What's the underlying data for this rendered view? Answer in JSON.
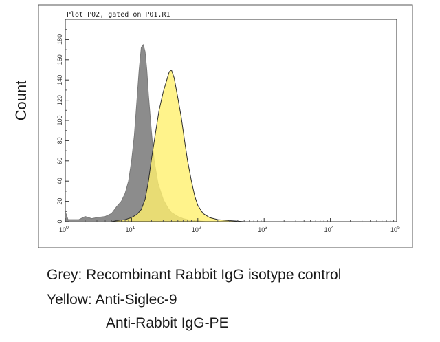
{
  "chart_data": {
    "type": "area",
    "title": "Plot P02, gated on P01.R1",
    "ylabel": "Count",
    "xlabel": "",
    "x_scale": "log",
    "xlim": [
      1,
      100000
    ],
    "ylim": [
      0,
      200
    ],
    "x_ticks": [
      {
        "value": 1,
        "base": "10",
        "exp": "0"
      },
      {
        "value": 10,
        "base": "10",
        "exp": "1"
      },
      {
        "value": 100,
        "base": "10",
        "exp": "2"
      },
      {
        "value": 1000,
        "base": "10",
        "exp": "3"
      },
      {
        "value": 10000,
        "base": "10",
        "exp": "4"
      },
      {
        "value": 100000,
        "base": "10",
        "exp": "5"
      }
    ],
    "y_ticks": [
      {
        "value": 0,
        "label": "0"
      },
      {
        "value": 20,
        "label": "20"
      },
      {
        "value": 40,
        "label": "40"
      },
      {
        "value": 60,
        "label": "60"
      },
      {
        "value": 80,
        "label": "80"
      },
      {
        "value": 100,
        "label": "100"
      },
      {
        "value": 120,
        "label": "120"
      },
      {
        "value": 140,
        "label": "140"
      },
      {
        "value": 160,
        "label": "160"
      },
      {
        "value": 180,
        "label": "180"
      }
    ],
    "grid": false,
    "legend": "below chart",
    "series": [
      {
        "color": "#8c8c8c",
        "outline": "#7a7a7a",
        "x": [
          1,
          1.1,
          1.3,
          1.6,
          2,
          2.5,
          3,
          4,
          5,
          6,
          7,
          8,
          9,
          10,
          11,
          12,
          13,
          14,
          15,
          16,
          17,
          18,
          20,
          22,
          25,
          30,
          35,
          40,
          50,
          60,
          80,
          100,
          130
        ],
        "values": [
          10,
          2,
          2,
          2,
          5,
          3,
          4,
          5,
          8,
          15,
          20,
          28,
          40,
          60,
          85,
          118,
          150,
          172,
          175,
          168,
          150,
          125,
          88,
          60,
          38,
          22,
          14,
          9,
          5,
          3,
          1,
          1,
          0
        ]
      },
      {
        "color": "#fff06e",
        "outline": "#2a2a2a",
        "x": [
          5,
          6,
          8,
          10,
          12,
          14,
          16,
          18,
          20,
          23,
          26,
          30,
          34,
          37,
          40,
          44,
          50,
          56,
          63,
          70,
          80,
          90,
          100,
          120,
          150,
          200,
          300,
          400,
          500
        ],
        "values": [
          0,
          1,
          2,
          4,
          7,
          12,
          22,
          40,
          62,
          88,
          110,
          128,
          140,
          148,
          150,
          142,
          122,
          104,
          80,
          60,
          40,
          25,
          16,
          8,
          4,
          2,
          1,
          0.5,
          0
        ]
      }
    ]
  },
  "legend": {
    "line1": "Grey: Recombinant Rabbit IgG isotype control",
    "line2": "Yellow: Anti-Siglec-9",
    "line3": "Anti-Rabbit IgG-PE"
  }
}
